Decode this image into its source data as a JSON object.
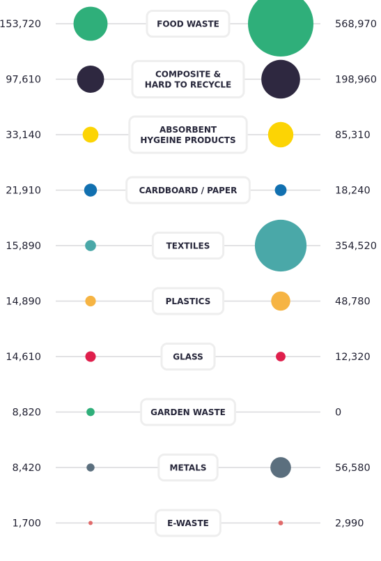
{
  "chart_data": {
    "type": "bubble-comparison",
    "categories": [
      {
        "label": [
          "FOOD WASTE"
        ],
        "left": 153720,
        "right": 568970,
        "left_label": "153,720",
        "right_label": "568,970",
        "color": "#2faf7a"
      },
      {
        "label": [
          "COMPOSITE &",
          "HARD TO RECYCLE"
        ],
        "left": 97610,
        "right": 198960,
        "left_label": "97,610",
        "right_label": "198,960",
        "color": "#2e2840"
      },
      {
        "label": [
          "ABSORBENT",
          "HYGEINE PRODUCTS"
        ],
        "left": 33140,
        "right": 85310,
        "left_label": "33,140",
        "right_label": "85,310",
        "color": "#fcd404"
      },
      {
        "label": [
          "CARDBOARD / PAPER"
        ],
        "left": 21910,
        "right": 18240,
        "left_label": "21,910",
        "right_label": "18,240",
        "color": "#1170b0"
      },
      {
        "label": [
          "TEXTILES"
        ],
        "left": 15890,
        "right": 354520,
        "left_label": "15,890",
        "right_label": "354,520",
        "color": "#4aa8a8"
      },
      {
        "label": [
          "PLASTICS"
        ],
        "left": 14890,
        "right": 48780,
        "left_label": "14,890",
        "right_label": "48,780",
        "color": "#f6b443"
      },
      {
        "label": [
          "GLASS"
        ],
        "left": 14610,
        "right": 12320,
        "left_label": "14,610",
        "right_label": "12,320",
        "color": "#df1f4c"
      },
      {
        "label": [
          "GARDEN WASTE"
        ],
        "left": 8820,
        "right": 0,
        "left_label": "8,820",
        "right_label": "0",
        "color": "#2faf7a"
      },
      {
        "label": [
          "METALS"
        ],
        "left": 8420,
        "right": 56580,
        "left_label": "8,420",
        "right_label": "56,580",
        "color": "#5b6f7e"
      },
      {
        "label": [
          "E-WASTE"
        ],
        "left": 1700,
        "right": 2990,
        "left_label": "1,700",
        "right_label": "2,990",
        "color": "#e06a6a"
      }
    ]
  }
}
